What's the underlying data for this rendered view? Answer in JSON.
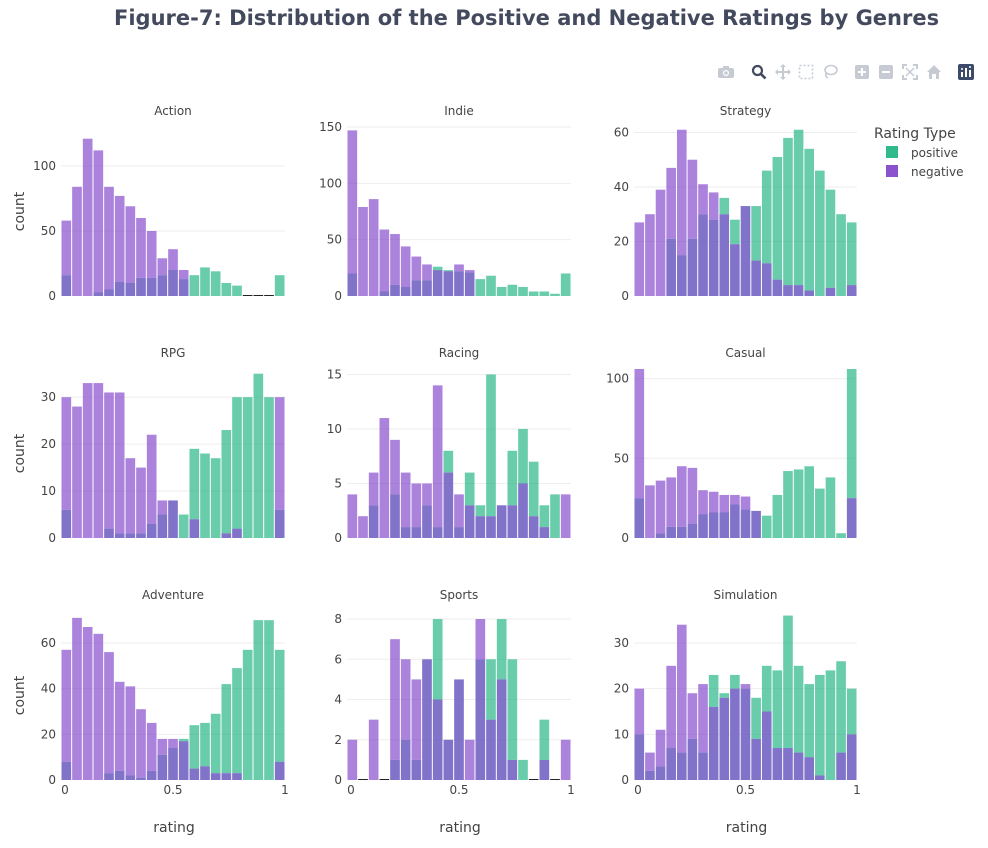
{
  "title": "Figure-7: Distribution of the Positive and Negative Ratings by Genres",
  "modebar": {
    "icons": [
      "camera-icon",
      "zoom-icon",
      "pan-icon",
      "box-select-icon",
      "lasso-icon",
      "zoom-in-icon",
      "zoom-out-icon",
      "autoscale-icon",
      "reset-axes-icon",
      "plotly-logo-icon"
    ]
  },
  "colors": {
    "positive": "#19b27f",
    "negative": "#7e3fc9",
    "overlap": "#6a5ac0",
    "grid": "#eeeeee"
  },
  "legend": {
    "title": "Rating Type",
    "items": [
      "positive",
      "negative"
    ],
    "placement": "top-right"
  },
  "chart_data": {
    "type": "bar",
    "mode": "overlay histogram",
    "bins": [
      "0.00",
      "0.05",
      "0.10",
      "0.15",
      "0.20",
      "0.25",
      "0.30",
      "0.35",
      "0.40",
      "0.45",
      "0.50",
      "0.55",
      "0.60",
      "0.65",
      "0.70",
      "0.75",
      "0.80",
      "0.85",
      "0.90",
      "0.95",
      "1.00"
    ],
    "xlabel": "rating",
    "ylabel": "count",
    "xticks": [
      "0",
      "0.5",
      "1"
    ],
    "xlim": [
      0,
      1
    ],
    "subplots": [
      {
        "genre": "Action",
        "ylim": [
          0,
          130
        ],
        "yticks": [
          "0",
          "50",
          "100"
        ],
        "positive": [
          16,
          0,
          0,
          3,
          5,
          11,
          10,
          14,
          14,
          16,
          20,
          13,
          16,
          22,
          19,
          10,
          8,
          0,
          0,
          0,
          16
        ],
        "negative": [
          58,
          84,
          121,
          112,
          84,
          77,
          69,
          60,
          50,
          29,
          36,
          20,
          0,
          0,
          0,
          0,
          0,
          0,
          0,
          0,
          0
        ]
      },
      {
        "genre": "Indie",
        "ylim": [
          0,
          150
        ],
        "yticks": [
          "0",
          "50",
          "100",
          "150"
        ],
        "positive": [
          20,
          0,
          0,
          4,
          10,
          8,
          14,
          14,
          26,
          23,
          22,
          21,
          15,
          18,
          8,
          10,
          8,
          4,
          4,
          2,
          20
        ],
        "negative": [
          147,
          79,
          86,
          59,
          55,
          44,
          35,
          28,
          23,
          22,
          28,
          23,
          0,
          0,
          0,
          0,
          0,
          0,
          0,
          0,
          0
        ]
      },
      {
        "genre": "Strategy",
        "ylim": [
          0,
          62
        ],
        "yticks": [
          "0",
          "20",
          "40",
          "60"
        ],
        "positive": [
          0,
          0,
          0,
          21,
          15,
          21,
          30,
          28,
          36,
          28,
          33,
          33,
          46,
          51,
          58,
          61,
          54,
          46,
          39,
          30,
          27
        ],
        "negative": [
          27,
          30,
          39,
          47,
          61,
          50,
          41,
          38,
          30,
          19,
          33,
          13,
          12,
          6,
          4,
          4,
          2,
          0,
          3,
          0,
          4
        ]
      },
      {
        "genre": "RPG",
        "ylim": [
          0,
          36
        ],
        "yticks": [
          "0",
          "10",
          "20",
          "30"
        ],
        "positive": [
          6,
          0,
          0,
          0,
          2,
          1,
          1,
          1,
          3,
          5,
          8,
          5,
          19,
          18,
          17,
          23,
          30,
          30,
          35,
          30,
          6
        ],
        "negative": [
          30,
          28,
          33,
          33,
          31,
          31,
          17,
          15,
          22,
          8,
          8,
          0,
          4,
          0,
          0,
          1,
          2,
          0,
          0,
          0,
          30
        ]
      },
      {
        "genre": "Racing",
        "ylim": [
          0,
          15.5
        ],
        "yticks": [
          "0",
          "5",
          "10",
          "15"
        ],
        "positive": [
          0,
          0,
          3,
          0,
          4,
          1,
          1,
          3,
          1,
          8,
          1,
          6,
          3,
          15,
          3,
          8,
          10,
          7,
          3,
          4,
          0
        ],
        "negative": [
          4,
          2,
          6,
          11,
          9,
          6,
          5,
          5,
          14,
          6,
          4,
          3,
          2,
          2,
          3,
          3,
          5,
          2,
          1,
          0,
          4
        ]
      },
      {
        "genre": "Casual",
        "ylim": [
          0,
          106
        ],
        "yticks": [
          "0",
          "50",
          "100"
        ],
        "positive": [
          25,
          0,
          3,
          7,
          7,
          9,
          15,
          16,
          16,
          21,
          18,
          17,
          14,
          27,
          42,
          43,
          45,
          31,
          38,
          3,
          106
        ],
        "negative": [
          106,
          33,
          36,
          38,
          45,
          44,
          30,
          29,
          27,
          27,
          26,
          17,
          0,
          0,
          0,
          0,
          0,
          0,
          0,
          0,
          25
        ]
      },
      {
        "genre": "Adventure",
        "ylim": [
          0,
          74
        ],
        "yticks": [
          "0",
          "20",
          "40",
          "60"
        ],
        "positive": [
          8,
          0,
          0,
          0,
          3,
          4,
          2,
          1,
          4,
          11,
          14,
          18,
          24,
          25,
          29,
          42,
          49,
          57,
          70,
          70,
          57
        ],
        "negative": [
          57,
          71,
          67,
          64,
          56,
          43,
          41,
          31,
          25,
          18,
          18,
          17,
          5,
          6,
          3,
          3,
          3,
          0,
          0,
          0,
          8
        ]
      },
      {
        "genre": "Sports",
        "ylim": [
          0,
          8.4
        ],
        "yticks": [
          "0",
          "2",
          "4",
          "6",
          "8"
        ],
        "positive": [
          0,
          0,
          0,
          0,
          1,
          2,
          1,
          6,
          8,
          2,
          5,
          0,
          6,
          6,
          8,
          6,
          1,
          0,
          3,
          0,
          0
        ],
        "negative": [
          2,
          0,
          3,
          0,
          7,
          6,
          5,
          6,
          4,
          2,
          5,
          2,
          8,
          3,
          5,
          1,
          0,
          0,
          1,
          0,
          2
        ]
      },
      {
        "genre": "Simulation",
        "ylim": [
          0,
          37
        ],
        "yticks": [
          "0",
          "10",
          "20",
          "30"
        ],
        "positive": [
          10,
          2,
          3,
          7,
          6,
          9,
          6,
          23,
          19,
          23,
          20,
          18,
          25,
          24,
          36,
          25,
          21,
          23,
          24,
          26,
          20
        ],
        "negative": [
          20,
          6,
          11,
          25,
          34,
          19,
          21,
          16,
          18,
          20,
          21,
          9,
          15,
          7,
          7,
          6,
          5,
          1,
          0,
          6,
          10
        ]
      }
    ]
  }
}
